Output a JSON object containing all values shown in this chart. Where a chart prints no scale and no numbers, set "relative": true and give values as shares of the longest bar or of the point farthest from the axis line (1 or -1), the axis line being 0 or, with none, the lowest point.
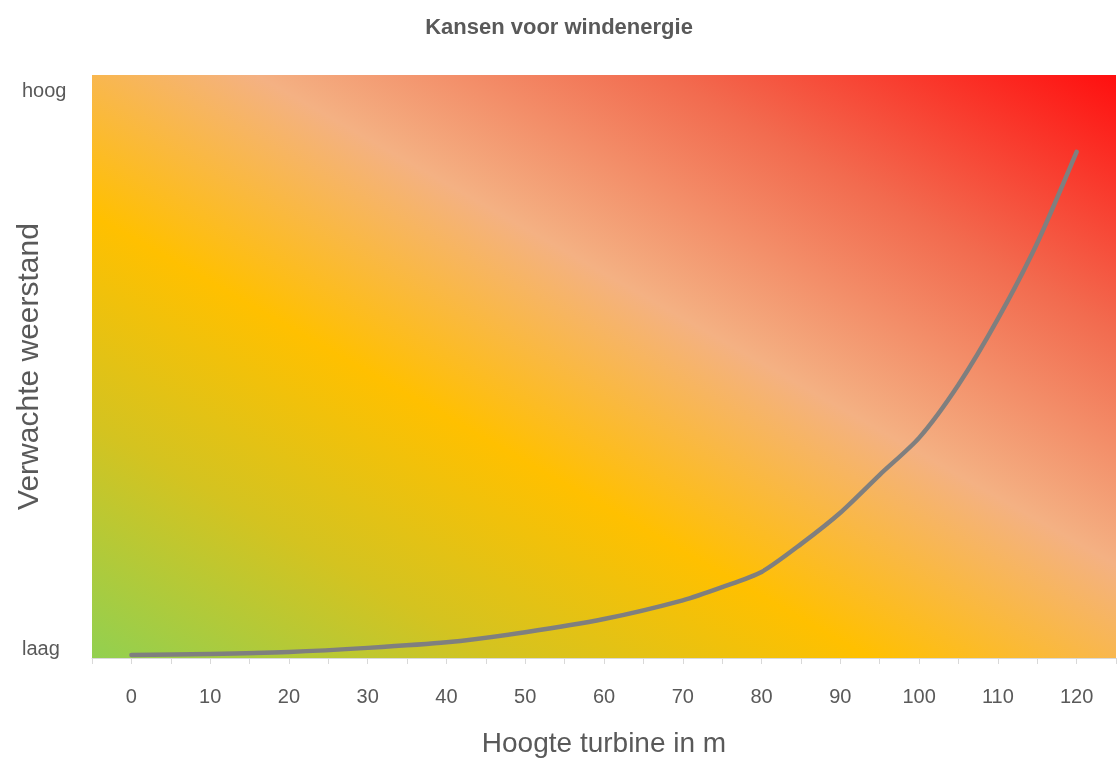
{
  "chart_data": {
    "type": "line",
    "title": "Kansen voor windenergie",
    "xlabel": "Hoogte turbine in m",
    "ylabel": "Verwachte weerstand",
    "annotations": [
      "laag",
      "hoog"
    ],
    "relative": true,
    "x": [
      0,
      10,
      20,
      30,
      40,
      50,
      60,
      70,
      75,
      80,
      85,
      90,
      95,
      100,
      105,
      110,
      115,
      120
    ],
    "series": [
      {
        "color": "#7f7f7f",
        "values": [
          0.006,
          0.008,
          0.012,
          0.02,
          0.031,
          0.051,
          0.077,
          0.114,
          0.14,
          0.17,
          0.225,
          0.287,
          0.362,
          0.435,
          0.54,
          0.67,
          0.82,
          1
        ]
      }
    ],
    "xlim": [
      -5,
      125
    ],
    "xticks": [
      {
        "value": -5,
        "label": null
      },
      0,
      {
        "value": 5,
        "label": null
      },
      10,
      {
        "value": 15,
        "label": null
      },
      20,
      {
        "value": 25,
        "label": null
      },
      30,
      {
        "value": 35,
        "label": null
      },
      40,
      {
        "value": 45,
        "label": null
      },
      50,
      {
        "value": 55,
        "label": null
      },
      60,
      {
        "value": 65,
        "label": null
      },
      70,
      {
        "value": 75,
        "label": null
      },
      80,
      {
        "value": 85,
        "label": null
      },
      90,
      {
        "value": 95,
        "label": null
      },
      100,
      {
        "value": 105,
        "label": null
      },
      110,
      {
        "value": 115,
        "label": null
      },
      120,
      {
        "value": 125,
        "label": null
      }
    ],
    "grid": false,
    "marker": "none",
    "line_style": "solid"
  }
}
